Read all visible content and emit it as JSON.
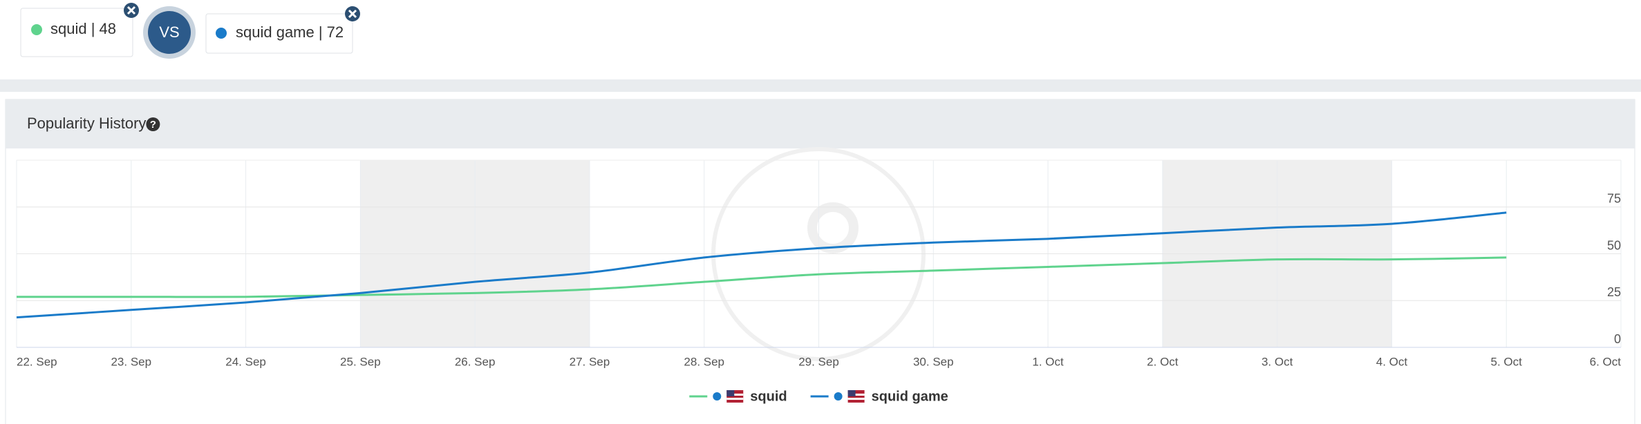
{
  "keywords": [
    {
      "label": "squid | 48",
      "color": "#5fd38d"
    },
    {
      "label": "squid game | 72",
      "color": "#1a7bc9"
    }
  ],
  "vs": "VS",
  "panel_title": "Popularity History",
  "chart_data": {
    "type": "line",
    "categories": [
      "22. Sep",
      "23. Sep",
      "24. Sep",
      "25. Sep",
      "26. Sep",
      "27. Sep",
      "28. Sep",
      "29. Sep",
      "30. Sep",
      "1. Oct",
      "2. Oct",
      "3. Oct",
      "4. Oct",
      "5. Oct",
      "6. Oct"
    ],
    "series": [
      {
        "name": "squid",
        "color": "#5fd38d",
        "values": [
          27,
          27,
          27,
          28,
          29,
          31,
          35,
          39,
          41,
          43,
          45,
          47,
          47,
          48,
          null
        ]
      },
      {
        "name": "squid game",
        "color": "#1a7bc9",
        "values": [
          16,
          20,
          24,
          29,
          35,
          40,
          48,
          53,
          56,
          58,
          61,
          64,
          66,
          72,
          null
        ]
      }
    ],
    "ylim": [
      0,
      100
    ],
    "yticks": [
      0,
      25,
      50,
      75
    ],
    "grid": true
  }
}
